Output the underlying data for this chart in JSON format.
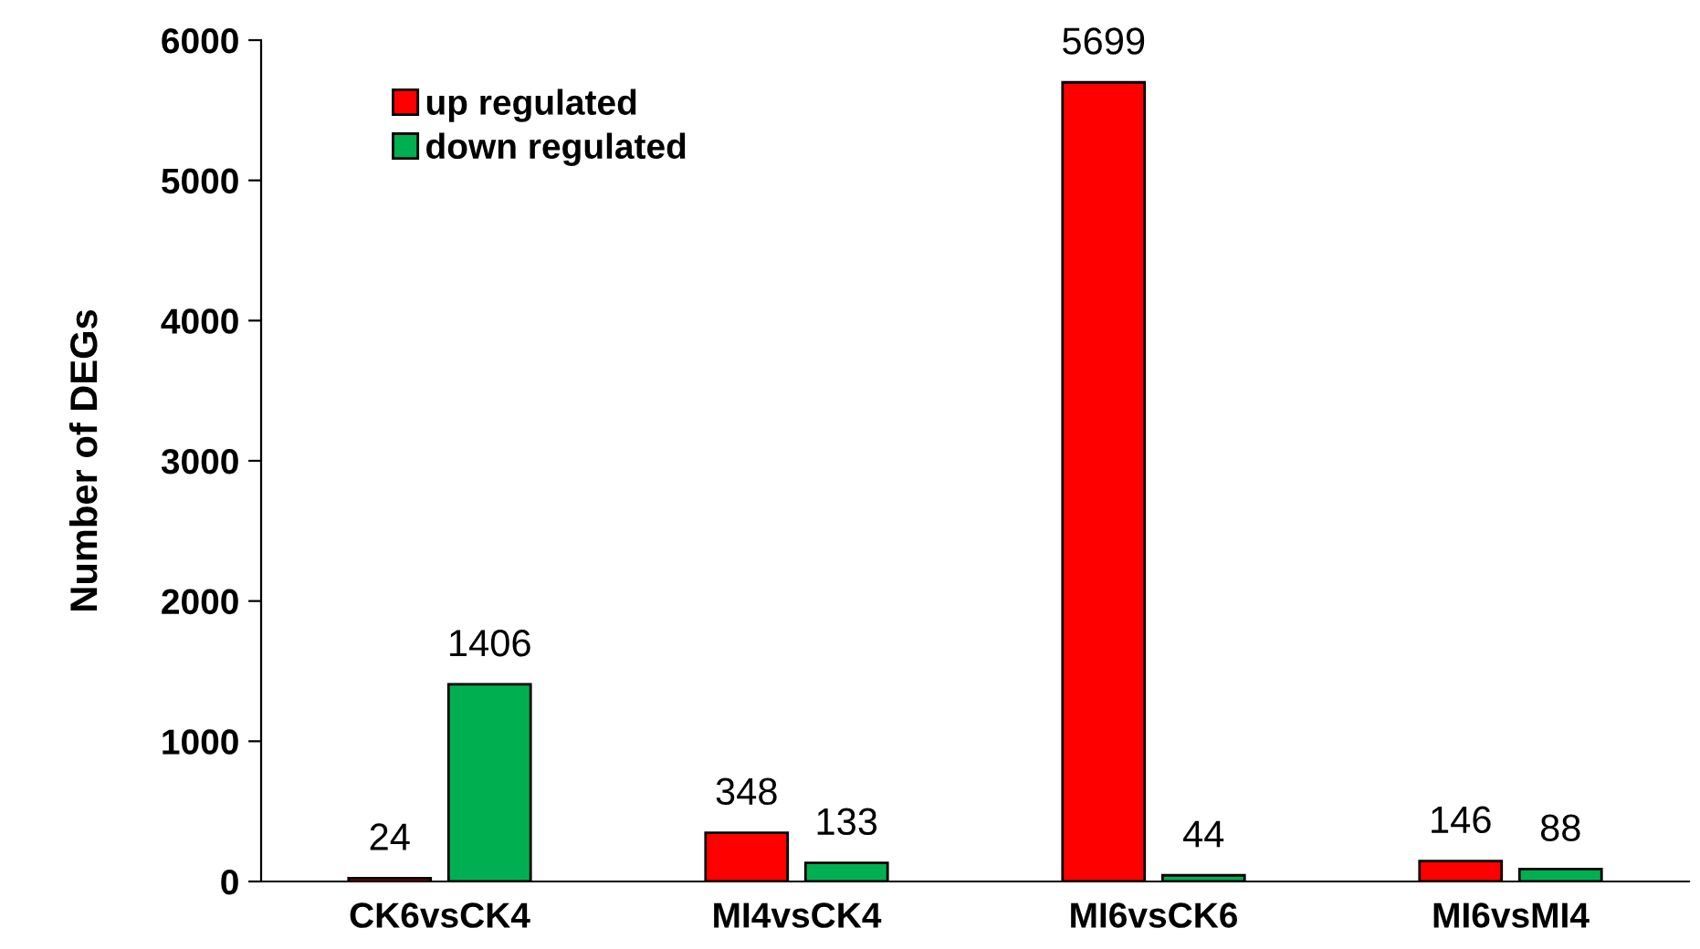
{
  "chart_data": {
    "type": "bar",
    "ylabel": "Number of DEGs",
    "categories": [
      "CK6vsCK4",
      "MI4vsCK4",
      "MI6vsCK6",
      "MI6vsMI4"
    ],
    "series": [
      {
        "name": "up regulated",
        "color": "#ff0000",
        "values": [
          24,
          348,
          5699,
          146
        ]
      },
      {
        "name": "down regulated",
        "color": "#00b050",
        "values": [
          1406,
          133,
          44,
          88
        ]
      }
    ],
    "ylim": [
      0,
      6000
    ],
    "yticks": [
      0,
      1000,
      2000,
      3000,
      4000,
      5000,
      6000
    ],
    "grid": false,
    "legend": "top left",
    "data_labels": true
  }
}
